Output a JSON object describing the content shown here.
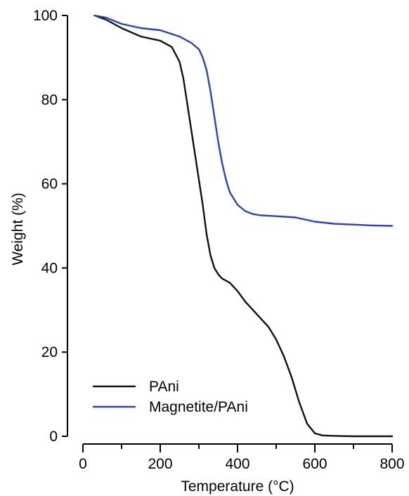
{
  "chart_data": {
    "type": "line",
    "title": "",
    "xlabel": "Temperature (°C)",
    "ylabel": "Weight (%)",
    "xlim": [
      0,
      800
    ],
    "ylim": [
      0,
      100
    ],
    "xticks": [
      0,
      200,
      400,
      600,
      800
    ],
    "xticks_minor": [
      100,
      300,
      500,
      700
    ],
    "yticks": [
      0,
      20,
      40,
      60,
      80,
      100
    ],
    "grid": false,
    "legend_position": "bottom-left",
    "series": [
      {
        "name": "PAni",
        "color": "#111111",
        "x": [
          30,
          60,
          100,
          150,
          200,
          230,
          250,
          260,
          270,
          280,
          290,
          300,
          310,
          320,
          330,
          340,
          350,
          360,
          380,
          400,
          420,
          450,
          480,
          500,
          520,
          540,
          560,
          580,
          600,
          620,
          650,
          700,
          750,
          800
        ],
        "y": [
          100,
          99,
          97,
          95,
          94,
          92.5,
          89,
          85,
          79,
          73,
          67,
          61,
          55,
          48,
          43,
          40,
          38.5,
          37.5,
          36.5,
          34.5,
          32,
          29,
          26,
          23,
          19,
          14,
          8,
          3,
          0.7,
          0.2,
          0.1,
          0,
          0,
          0
        ]
      },
      {
        "name": "Magnetite/PAni",
        "color": "#2b3fd1",
        "x": [
          30,
          60,
          100,
          150,
          200,
          250,
          280,
          300,
          310,
          320,
          330,
          340,
          350,
          360,
          370,
          380,
          400,
          420,
          440,
          460,
          500,
          550,
          600,
          650,
          700,
          750,
          800
        ],
        "y": [
          100,
          99.5,
          98,
          97,
          96.5,
          95,
          93.5,
          92,
          90,
          87,
          82,
          76,
          70,
          65,
          61,
          58,
          55,
          53.5,
          52.8,
          52.5,
          52.3,
          52,
          51,
          50.5,
          50.3,
          50.1,
          50
        ]
      }
    ]
  }
}
